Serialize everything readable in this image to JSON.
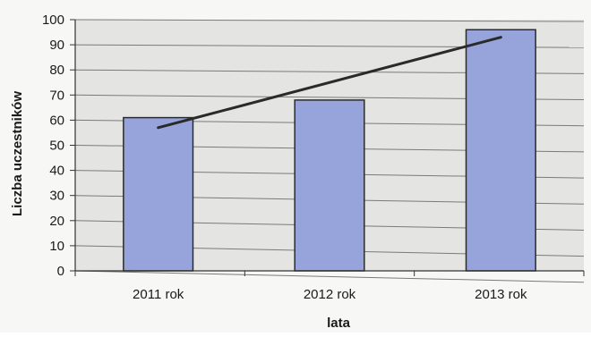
{
  "chart_data": {
    "type": "bar",
    "categories": [
      "2011 rok",
      "2012 rok",
      "2013 rok"
    ],
    "values": [
      61,
      68,
      96
    ],
    "trendline": {
      "type": "linear",
      "start": 57,
      "end": 93
    },
    "xlabel": "lata",
    "ylabel": "Liczba uczestników",
    "ylim": [
      0,
      100
    ],
    "y_ticks": [
      "0",
      "10",
      "20",
      "30",
      "40",
      "50",
      "60",
      "70",
      "80",
      "90",
      "100"
    ],
    "grid": true,
    "legend": "none",
    "colors": {
      "bar_fill": "#97a4dc",
      "bar_stroke": "#2b2b2b",
      "trendline": "#2a2a2a",
      "grid": "#7a7a7a",
      "plot_background": "#e4e4e2"
    }
  }
}
